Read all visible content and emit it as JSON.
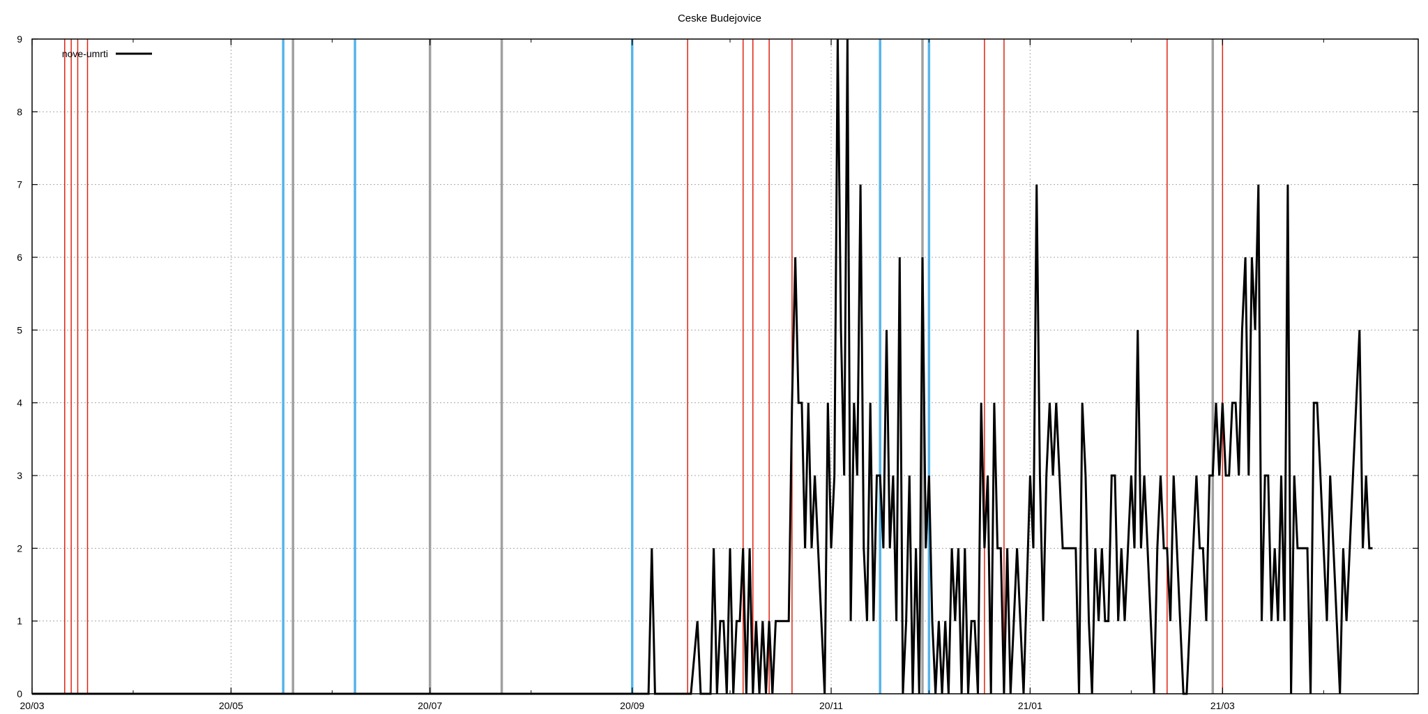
{
  "chart_data": {
    "type": "line",
    "title": "Ceske Budejovice",
    "xlabel": "",
    "ylabel": "",
    "x_start": "2020-03-01",
    "x_end": "2021-04-30",
    "ylim": [
      0,
      9
    ],
    "grid": true,
    "legend_position": "top-left",
    "x_tick_labels": [
      {
        "date": "2020-03-01",
        "label": "20/03"
      },
      {
        "date": "2020-05-01",
        "label": "20/05"
      },
      {
        "date": "2020-07-01",
        "label": "20/07"
      },
      {
        "date": "2020-09-01",
        "label": "20/09"
      },
      {
        "date": "2020-11-01",
        "label": "20/11"
      },
      {
        "date": "2021-01-01",
        "label": "21/01"
      },
      {
        "date": "2021-03-01",
        "label": "21/03"
      }
    ],
    "y_ticks": [
      0,
      1,
      2,
      3,
      4,
      5,
      6,
      7,
      8,
      9
    ],
    "event_lines": {
      "red": {
        "color": "#dd2211",
        "dates": [
          "2020-03-11",
          "2020-03-13",
          "2020-03-15",
          "2020-03-18",
          "2020-09-18",
          "2020-10-05",
          "2020-10-08",
          "2020-10-13",
          "2020-10-20",
          "2020-12-18",
          "2020-12-24",
          "2021-02-12",
          "2021-03-01"
        ]
      },
      "blue": {
        "color": "#56b4e9",
        "dates": [
          "2020-05-17",
          "2020-06-08",
          "2020-09-01",
          "2020-11-16",
          "2020-12-01"
        ]
      },
      "gray": {
        "color": "#a0a0a0",
        "dates": [
          "2020-05-20",
          "2020-07-01",
          "2020-07-23",
          "2020-11-29",
          "2021-02-26"
        ]
      }
    },
    "series": [
      {
        "name": "nove-umrti",
        "color": "#000000",
        "points": [
          [
            "2020-03-01",
            0
          ],
          [
            "2020-09-06",
            0
          ],
          [
            "2020-09-07",
            2
          ],
          [
            "2020-09-08",
            0
          ],
          [
            "2020-09-19",
            0
          ],
          [
            "2020-09-21",
            1
          ],
          [
            "2020-09-22",
            0
          ],
          [
            "2020-09-25",
            0
          ],
          [
            "2020-09-26",
            2
          ],
          [
            "2020-09-27",
            0
          ],
          [
            "2020-09-28",
            1
          ],
          [
            "2020-09-29",
            1
          ],
          [
            "2020-09-30",
            0
          ],
          [
            "2020-10-01",
            2
          ],
          [
            "2020-10-02",
            0
          ],
          [
            "2020-10-03",
            1
          ],
          [
            "2020-10-04",
            1
          ],
          [
            "2020-10-05",
            2
          ],
          [
            "2020-10-06",
            0
          ],
          [
            "2020-10-07",
            2
          ],
          [
            "2020-10-08",
            0
          ],
          [
            "2020-10-09",
            1
          ],
          [
            "2020-10-10",
            0
          ],
          [
            "2020-10-11",
            1
          ],
          [
            "2020-10-12",
            0
          ],
          [
            "2020-10-13",
            1
          ],
          [
            "2020-10-14",
            0
          ],
          [
            "2020-10-15",
            1
          ],
          [
            "2020-10-16",
            1
          ],
          [
            "2020-10-17",
            1
          ],
          [
            "2020-10-18",
            1
          ],
          [
            "2020-10-19",
            1
          ],
          [
            "2020-10-20",
            4
          ],
          [
            "2020-10-21",
            6
          ],
          [
            "2020-10-22",
            4
          ],
          [
            "2020-10-23",
            4
          ],
          [
            "2020-10-24",
            2
          ],
          [
            "2020-10-25",
            4
          ],
          [
            "2020-10-26",
            2
          ],
          [
            "2020-10-27",
            3
          ],
          [
            "2020-10-28",
            2
          ],
          [
            "2020-10-29",
            1
          ],
          [
            "2020-10-30",
            0
          ],
          [
            "2020-10-31",
            4
          ],
          [
            "2020-11-01",
            2
          ],
          [
            "2020-11-02",
            3
          ],
          [
            "2020-11-03",
            9
          ],
          [
            "2020-11-04",
            5
          ],
          [
            "2020-11-05",
            3
          ],
          [
            "2020-11-06",
            9
          ],
          [
            "2020-11-07",
            1
          ],
          [
            "2020-11-08",
            4
          ],
          [
            "2020-11-09",
            3
          ],
          [
            "2020-11-10",
            7
          ],
          [
            "2020-11-11",
            2
          ],
          [
            "2020-11-12",
            1
          ],
          [
            "2020-11-13",
            4
          ],
          [
            "2020-11-14",
            1
          ],
          [
            "2020-11-15",
            3
          ],
          [
            "2020-11-16",
            3
          ],
          [
            "2020-11-17",
            2
          ],
          [
            "2020-11-18",
            5
          ],
          [
            "2020-11-19",
            2
          ],
          [
            "2020-11-20",
            3
          ],
          [
            "2020-11-21",
            1
          ],
          [
            "2020-11-22",
            6
          ],
          [
            "2020-11-23",
            0
          ],
          [
            "2020-11-24",
            1
          ],
          [
            "2020-11-25",
            3
          ],
          [
            "2020-11-26",
            0
          ],
          [
            "2020-11-27",
            2
          ],
          [
            "2020-11-28",
            0
          ],
          [
            "2020-11-29",
            6
          ],
          [
            "2020-11-30",
            2
          ],
          [
            "2020-12-01",
            3
          ],
          [
            "2020-12-02",
            1
          ],
          [
            "2020-12-03",
            0
          ],
          [
            "2020-12-04",
            1
          ],
          [
            "2020-12-05",
            0
          ],
          [
            "2020-12-06",
            1
          ],
          [
            "2020-12-07",
            0
          ],
          [
            "2020-12-08",
            2
          ],
          [
            "2020-12-09",
            1
          ],
          [
            "2020-12-10",
            2
          ],
          [
            "2020-12-11",
            0
          ],
          [
            "2020-12-12",
            2
          ],
          [
            "2020-12-13",
            0
          ],
          [
            "2020-12-14",
            1
          ],
          [
            "2020-12-15",
            1
          ],
          [
            "2020-12-16",
            0
          ],
          [
            "2020-12-17",
            4
          ],
          [
            "2020-12-18",
            2
          ],
          [
            "2020-12-19",
            3
          ],
          [
            "2020-12-20",
            0
          ],
          [
            "2020-12-21",
            4
          ],
          [
            "2020-12-22",
            2
          ],
          [
            "2020-12-23",
            2
          ],
          [
            "2020-12-24",
            0
          ],
          [
            "2020-12-25",
            2
          ],
          [
            "2020-12-26",
            0
          ],
          [
            "2020-12-27",
            1
          ],
          [
            "2020-12-28",
            2
          ],
          [
            "2020-12-29",
            1
          ],
          [
            "2020-12-30",
            0
          ],
          [
            "2021-01-01",
            3
          ],
          [
            "2021-01-02",
            2
          ],
          [
            "2021-01-03",
            7
          ],
          [
            "2021-01-04",
            3
          ],
          [
            "2021-01-05",
            1
          ],
          [
            "2021-01-06",
            3
          ],
          [
            "2021-01-07",
            4
          ],
          [
            "2021-01-08",
            3
          ],
          [
            "2021-01-09",
            4
          ],
          [
            "2021-01-10",
            3
          ],
          [
            "2021-01-11",
            2
          ],
          [
            "2021-01-15",
            2
          ],
          [
            "2021-01-16",
            0
          ],
          [
            "2021-01-17",
            4
          ],
          [
            "2021-01-18",
            3
          ],
          [
            "2021-01-19",
            1
          ],
          [
            "2021-01-20",
            0
          ],
          [
            "2021-01-21",
            2
          ],
          [
            "2021-01-22",
            1
          ],
          [
            "2021-01-23",
            2
          ],
          [
            "2021-01-24",
            1
          ],
          [
            "2021-01-25",
            1
          ],
          [
            "2021-01-26",
            3
          ],
          [
            "2021-01-27",
            3
          ],
          [
            "2021-01-28",
            1
          ],
          [
            "2021-01-29",
            2
          ],
          [
            "2021-01-30",
            1
          ],
          [
            "2021-01-31",
            2
          ],
          [
            "2021-02-01",
            3
          ],
          [
            "2021-02-02",
            2
          ],
          [
            "2021-02-03",
            5
          ],
          [
            "2021-02-04",
            2
          ],
          [
            "2021-02-05",
            3
          ],
          [
            "2021-02-06",
            2
          ],
          [
            "2021-02-07",
            1
          ],
          [
            "2021-02-08",
            0
          ],
          [
            "2021-02-09",
            2
          ],
          [
            "2021-02-10",
            3
          ],
          [
            "2021-02-11",
            2
          ],
          [
            "2021-02-12",
            2
          ],
          [
            "2021-02-13",
            1
          ],
          [
            "2021-02-14",
            3
          ],
          [
            "2021-02-15",
            2
          ],
          [
            "2021-02-16",
            1
          ],
          [
            "2021-02-17",
            0
          ],
          [
            "2021-02-18",
            0
          ],
          [
            "2021-02-19",
            1
          ],
          [
            "2021-02-20",
            2
          ],
          [
            "2021-02-21",
            3
          ],
          [
            "2021-02-22",
            2
          ],
          [
            "2021-02-23",
            2
          ],
          [
            "2021-02-24",
            1
          ],
          [
            "2021-02-25",
            3
          ],
          [
            "2021-02-26",
            3
          ],
          [
            "2021-02-27",
            4
          ],
          [
            "2021-02-28",
            3
          ],
          [
            "2021-03-01",
            4
          ],
          [
            "2021-03-02",
            3
          ],
          [
            "2021-03-03",
            3
          ],
          [
            "2021-03-04",
            4
          ],
          [
            "2021-03-05",
            4
          ],
          [
            "2021-03-06",
            3
          ],
          [
            "2021-03-07",
            5
          ],
          [
            "2021-03-08",
            6
          ],
          [
            "2021-03-09",
            3
          ],
          [
            "2021-03-10",
            6
          ],
          [
            "2021-03-11",
            5
          ],
          [
            "2021-03-12",
            7
          ],
          [
            "2021-03-13",
            1
          ],
          [
            "2021-03-14",
            3
          ],
          [
            "2021-03-15",
            3
          ],
          [
            "2021-03-16",
            1
          ],
          [
            "2021-03-17",
            2
          ],
          [
            "2021-03-18",
            1
          ],
          [
            "2021-03-19",
            3
          ],
          [
            "2021-03-20",
            1
          ],
          [
            "2021-03-21",
            7
          ],
          [
            "2021-03-22",
            0
          ],
          [
            "2021-03-23",
            3
          ],
          [
            "2021-03-24",
            2
          ],
          [
            "2021-03-25",
            2
          ],
          [
            "2021-03-26",
            2
          ],
          [
            "2021-03-27",
            2
          ],
          [
            "2021-03-28",
            0
          ],
          [
            "2021-03-29",
            4
          ],
          [
            "2021-03-30",
            4
          ],
          [
            "2021-03-31",
            3
          ],
          [
            "2021-04-01",
            2
          ],
          [
            "2021-04-02",
            1
          ],
          [
            "2021-04-03",
            3
          ],
          [
            "2021-04-04",
            2
          ],
          [
            "2021-04-05",
            1
          ],
          [
            "2021-04-06",
            0
          ],
          [
            "2021-04-07",
            2
          ],
          [
            "2021-04-08",
            1
          ],
          [
            "2021-04-09",
            2
          ],
          [
            "2021-04-10",
            3
          ],
          [
            "2021-04-11",
            4
          ],
          [
            "2021-04-12",
            5
          ],
          [
            "2021-04-13",
            2
          ],
          [
            "2021-04-14",
            3
          ],
          [
            "2021-04-15",
            2
          ],
          [
            "2021-04-16",
            2
          ]
        ]
      }
    ]
  }
}
